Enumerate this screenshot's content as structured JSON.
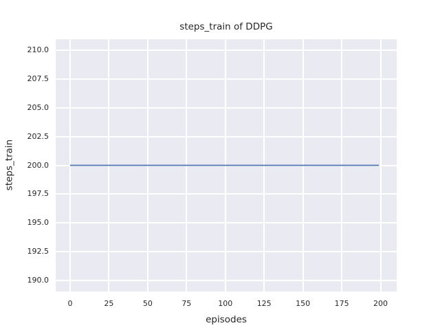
{
  "figure": {
    "background": "#ffffff",
    "text_color": "#262626"
  },
  "chart_data": {
    "type": "line",
    "title": "steps_train of DDPG",
    "xlabel": "episodes",
    "ylabel": "steps_train",
    "x_ticks": [
      "0",
      "25",
      "50",
      "75",
      "100",
      "125",
      "150",
      "175",
      "200"
    ],
    "y_ticks": [
      "190.0",
      "192.5",
      "195.0",
      "197.5",
      "200.0",
      "202.5",
      "205.0",
      "207.5",
      "210.0"
    ],
    "xlim": [
      -9.3,
      210.4
    ],
    "ylim": [
      189.04,
      210.96
    ],
    "grid": true,
    "plot_background": "#eaeaf2",
    "grid_color": "#ffffff",
    "series": [
      {
        "name": "steps_train",
        "color": "#4c72b0",
        "x": [
          0,
          199
        ],
        "y": [
          200,
          200
        ]
      }
    ]
  }
}
